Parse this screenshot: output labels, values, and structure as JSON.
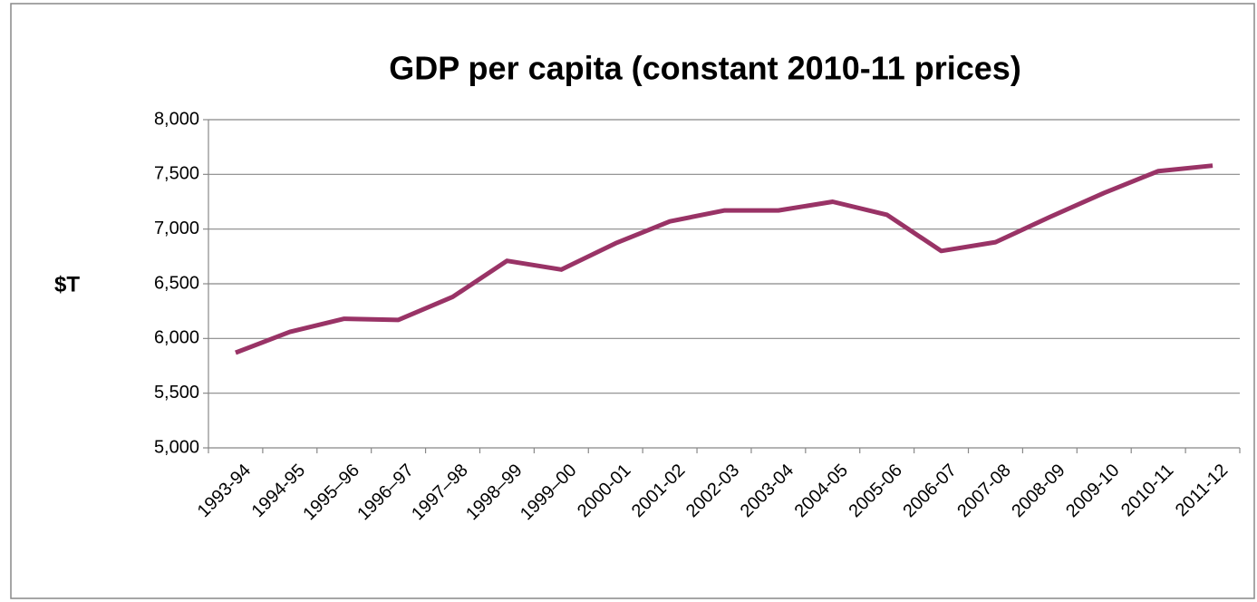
{
  "chart_data": {
    "type": "line",
    "title": "GDP per capita (constant 2010-11 prices)",
    "y_label": "$T",
    "categories": [
      "1993-94",
      "1994-95",
      "1995–96",
      "1996–97",
      "1997–98",
      "1998–99",
      "1999–00",
      "2000-01",
      "2001-02",
      "2002-03",
      "2003-04",
      "2004-05",
      "2005-06",
      "2006-07",
      "2007-08",
      "2008-09",
      "2009-10",
      "2010-11",
      "2011-12"
    ],
    "series": [
      {
        "name": "GDP per capita",
        "color": "#993366",
        "values": [
          5870,
          6060,
          6180,
          6170,
          6380,
          6710,
          6630,
          6870,
          7070,
          7170,
          7170,
          7250,
          7130,
          6800,
          6880,
          7110,
          7330,
          7530,
          7580
        ]
      }
    ],
    "ylim": [
      5000,
      8000
    ],
    "yticks": [
      {
        "value": 5000,
        "label": "5,000"
      },
      {
        "value": 5500,
        "label": "5,500"
      },
      {
        "value": 6000,
        "label": "6,000"
      },
      {
        "value": 6500,
        "label": "6,500"
      },
      {
        "value": 7000,
        "label": "7,000"
      },
      {
        "value": 7500,
        "label": "7,500"
      },
      {
        "value": 8000,
        "label": "8,000"
      }
    ],
    "grid": true
  }
}
